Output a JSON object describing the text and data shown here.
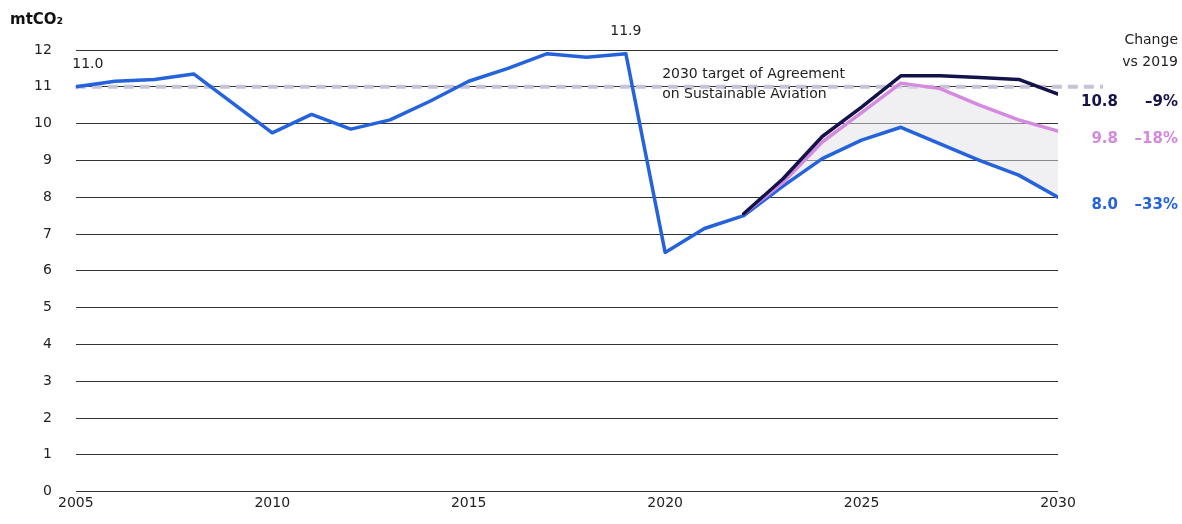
{
  "chart_data": {
    "type": "line",
    "ylabel": "mtCO₂",
    "xlim": [
      2005,
      2030
    ],
    "xticks": [
      2005,
      2010,
      2015,
      2020,
      2025,
      2030
    ],
    "ylim": [
      0,
      12
    ],
    "yticks": [
      0,
      1,
      2,
      3,
      4,
      5,
      6,
      7,
      8,
      9,
      10,
      11,
      12
    ],
    "grid": "y",
    "legend": false,
    "marker": "none",
    "line_style": "solid",
    "series": [
      {
        "color": "#2563dc",
        "x": [
          2005,
          2006,
          2007,
          2008,
          2009,
          2010,
          2011,
          2012,
          2013,
          2014,
          2015,
          2016,
          2017,
          2018,
          2019,
          2020,
          2021,
          2022,
          2023,
          2024,
          2025,
          2026,
          2027,
          2028,
          2029,
          2030
        ],
        "values": [
          11.0,
          11.15,
          11.2,
          11.35,
          10.55,
          9.75,
          10.25,
          9.85,
          10.1,
          10.6,
          11.15,
          11.5,
          11.9,
          11.8,
          11.9,
          6.5,
          7.15,
          7.5,
          8.3,
          9.05,
          9.55,
          9.9,
          9.45,
          9.0,
          8.6,
          8.0
        ]
      },
      {
        "color": "#d58ae0",
        "x": [
          2022,
          2023,
          2024,
          2025,
          2026,
          2027,
          2028,
          2029,
          2030
        ],
        "values": [
          7.55,
          8.4,
          9.5,
          10.3,
          11.1,
          10.95,
          10.5,
          10.1,
          9.8
        ],
        "lower": [
          7.5,
          8.3,
          9.05,
          9.55,
          9.9,
          9.45,
          9.0,
          8.6,
          8.0
        ],
        "upper": [
          7.55,
          8.4,
          9.5,
          10.3,
          11.1,
          10.95,
          10.5,
          10.1,
          9.8
        ]
      },
      {
        "color": "#14124a",
        "x": [
          2022,
          2023,
          2024,
          2025,
          2026,
          2027,
          2028,
          2029,
          2030
        ],
        "values": [
          7.55,
          8.5,
          9.65,
          10.45,
          11.3,
          11.3,
          11.25,
          11.2,
          10.8
        ]
      }
    ],
    "ref_lines": [
      {
        "axis": "y",
        "value": 11,
        "label": "2030 target of Agreement\non Sustainable Aviation",
        "color": "#c4c4d6",
        "line_style": "dashed"
      }
    ],
    "annotations": [
      {
        "text": "11.0",
        "x": 2005,
        "y": 11.0
      },
      {
        "text": "11.9",
        "x": 2019,
        "y": 11.9
      },
      "Change\nvs 2019",
      {
        "text": "10.8",
        "x": 2030,
        "y": 10.8
      },
      "–9%",
      {
        "text": "9.8",
        "x": 2030,
        "y": 9.8
      },
      "–18%",
      {
        "text": "8.0",
        "x": 2030,
        "y": 8.0
      },
      "–33%"
    ]
  }
}
